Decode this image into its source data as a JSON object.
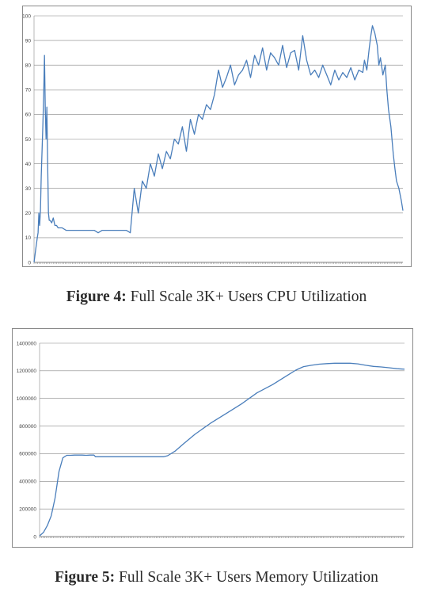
{
  "figures": [
    {
      "caption_label": "Figure 4:",
      "caption_text": " Full Scale 3K+ Users CPU Utilization"
    },
    {
      "caption_label": "Figure 5:",
      "caption_text": " Full Scale 3K+ Users Memory Utilization"
    }
  ],
  "colors": {
    "series": "#4a7ebb",
    "grid": "#888888",
    "frame": "#8a8a8a"
  },
  "chart_data": [
    {
      "type": "line",
      "title": "",
      "xlabel": "",
      "ylabel": "",
      "ylim": [
        0,
        100
      ],
      "yticks": [
        "0",
        "10",
        "20",
        "30",
        "40",
        "50",
        "60",
        "70",
        "80",
        "90",
        "100"
      ],
      "grid": true,
      "x": [
        0,
        2,
        4,
        5,
        6,
        7,
        8,
        9,
        10,
        11,
        12,
        13,
        14,
        15,
        16,
        17,
        18,
        19,
        20,
        22,
        24,
        26,
        28,
        30,
        35,
        40,
        45,
        50,
        55,
        60,
        65,
        70,
        75,
        80,
        85,
        90,
        95,
        100,
        105,
        110,
        115,
        120,
        125,
        130,
        135,
        140,
        145,
        150,
        155,
        160,
        165,
        170,
        175,
        180,
        185,
        190,
        195,
        200,
        205,
        210,
        215,
        220,
        225,
        230,
        235,
        240,
        245,
        250,
        255,
        260,
        265,
        270,
        275,
        280,
        285,
        290,
        295,
        300,
        305,
        310,
        315,
        320,
        325,
        330,
        335,
        340,
        345,
        350,
        355,
        360,
        365,
        370,
        375,
        380,
        385,
        390,
        395,
        400,
        405,
        410,
        412,
        415,
        418,
        420,
        422,
        425,
        428,
        430,
        432,
        435,
        438,
        440,
        442,
        445,
        448,
        450,
        452,
        455,
        458,
        460
      ],
      "y": [
        0,
        5,
        10,
        12,
        20,
        15,
        21,
        35,
        45,
        55,
        68,
        84,
        62,
        50,
        63,
        40,
        20,
        17,
        17,
        16,
        18,
        15,
        15,
        14,
        14,
        13,
        13,
        13,
        13,
        13,
        13,
        13,
        13,
        12,
        13,
        13,
        13,
        13,
        13,
        13,
        13,
        12,
        30,
        20,
        33,
        30,
        40,
        35,
        44,
        38,
        45,
        42,
        50,
        48,
        55,
        45,
        58,
        52,
        60,
        58,
        64,
        62,
        68,
        78,
        71,
        75,
        80,
        72,
        76,
        78,
        82,
        75,
        84,
        80,
        87,
        78,
        85,
        83,
        80,
        88,
        79,
        85,
        86,
        78,
        92,
        82,
        76,
        78,
        75,
        80,
        76,
        72,
        78,
        74,
        77,
        75,
        79,
        74,
        78,
        77,
        82,
        78,
        87,
        92,
        96,
        93,
        88,
        80,
        83,
        76,
        80,
        70,
        62,
        55,
        44,
        38,
        33,
        30,
        25,
        21
      ]
    },
    {
      "type": "line",
      "title": "",
      "xlabel": "",
      "ylabel": "",
      "ylim": [
        0,
        1400000
      ],
      "yticks": [
        "0",
        "200000",
        "400000",
        "600000",
        "800000",
        "1000000",
        "1200000",
        "1400000"
      ],
      "grid": true,
      "x": [
        0,
        5,
        10,
        15,
        20,
        25,
        30,
        35,
        40,
        45,
        50,
        55,
        60,
        65,
        70,
        72,
        80,
        100,
        120,
        140,
        150,
        160,
        165,
        175,
        185,
        200,
        220,
        240,
        260,
        280,
        300,
        320,
        330,
        340,
        350,
        360,
        370,
        380,
        400,
        410,
        420,
        430,
        440,
        450,
        460,
        470
      ],
      "y": [
        5000,
        30000,
        80000,
        150000,
        280000,
        470000,
        570000,
        588000,
        588000,
        590000,
        590000,
        590000,
        588000,
        590000,
        590000,
        578000,
        578000,
        578000,
        578000,
        578000,
        578000,
        578000,
        585000,
        620000,
        670000,
        740000,
        820000,
        890000,
        960000,
        1040000,
        1100000,
        1170000,
        1205000,
        1230000,
        1240000,
        1248000,
        1252000,
        1255000,
        1255000,
        1250000,
        1240000,
        1232000,
        1228000,
        1222000,
        1215000,
        1212000
      ]
    }
  ]
}
